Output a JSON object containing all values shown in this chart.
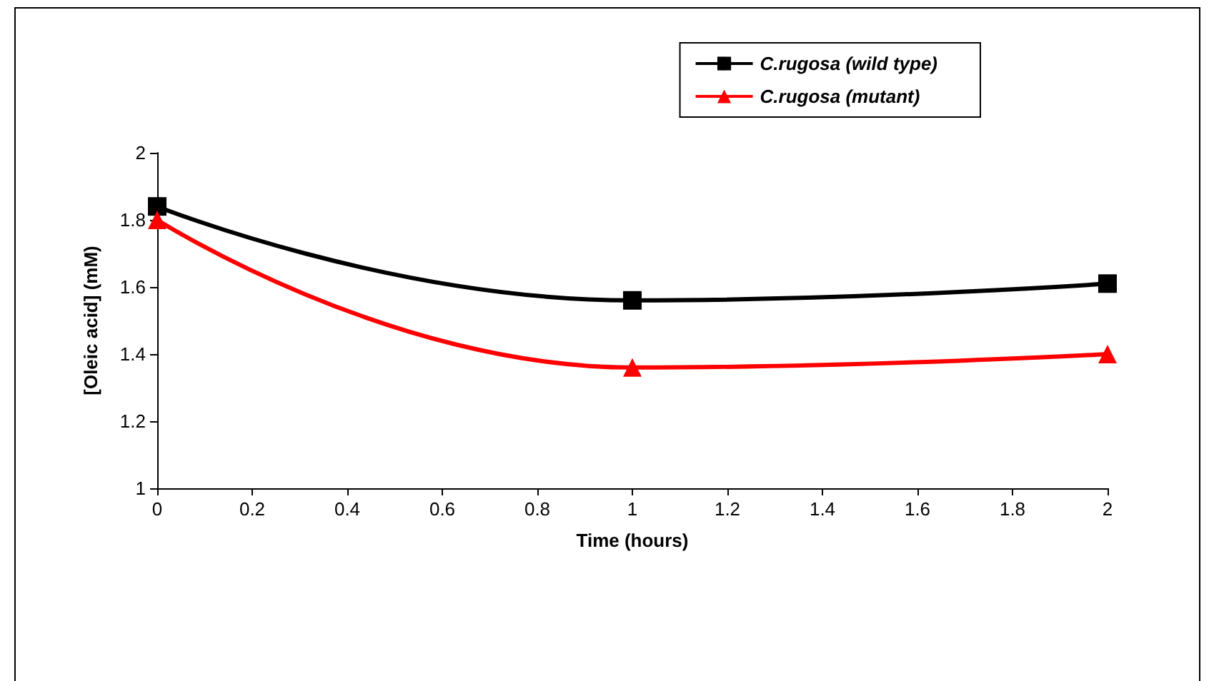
{
  "chart_data": {
    "type": "line",
    "xlabel": "Time (hours)",
    "ylabel": "[Oleic acid] (mM)",
    "x": [
      0,
      1,
      2
    ],
    "series": [
      {
        "name": "C.rugosa (wild type)",
        "color": "#000000",
        "marker": "square",
        "values": [
          1.84,
          1.56,
          1.61
        ]
      },
      {
        "name": "C.rugosa (mutant)",
        "color": "#ff0000",
        "marker": "triangle",
        "values": [
          1.8,
          1.36,
          1.4
        ]
      }
    ],
    "xlim": [
      0,
      2
    ],
    "xticks": [
      0,
      0.2,
      0.4,
      0.6,
      0.8,
      1,
      1.2,
      1.4,
      1.6,
      1.8,
      2
    ],
    "ylim": [
      1,
      2
    ],
    "yticks": [
      1,
      1.2,
      1.4,
      1.6,
      1.8,
      2
    ],
    "grid": false,
    "legend": "top right",
    "line_style": "solid"
  }
}
